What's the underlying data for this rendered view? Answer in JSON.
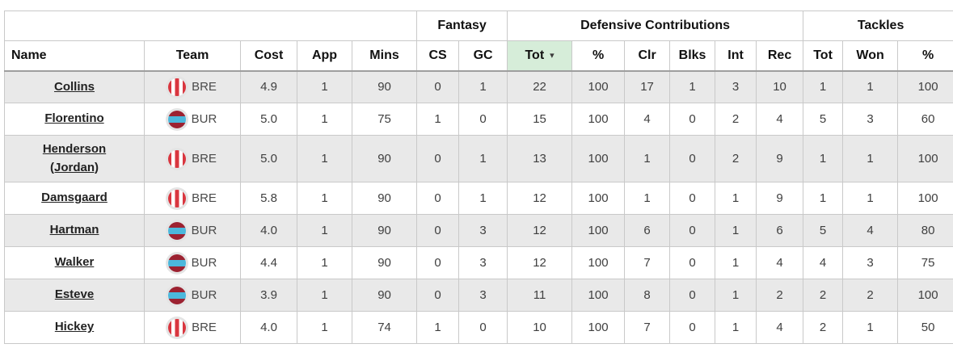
{
  "table": {
    "group_headers": [
      {
        "label": "",
        "span": 5
      },
      {
        "label": "Fantasy",
        "span": 2
      },
      {
        "label": "Defensive Contributions",
        "span": 6
      },
      {
        "label": "Tackles",
        "span": 3
      }
    ],
    "columns": [
      {
        "key": "name",
        "label": "Name"
      },
      {
        "key": "team",
        "label": "Team"
      },
      {
        "key": "cost",
        "label": "Cost"
      },
      {
        "key": "app",
        "label": "App"
      },
      {
        "key": "mins",
        "label": "Mins"
      },
      {
        "key": "cs",
        "label": "CS"
      },
      {
        "key": "gc",
        "label": "GC"
      },
      {
        "key": "dc_tot",
        "label": "Tot",
        "sorted": true,
        "sort_indicator": "▾"
      },
      {
        "key": "dc_pct",
        "label": "%"
      },
      {
        "key": "clr",
        "label": "Clr"
      },
      {
        "key": "blks",
        "label": "Blks"
      },
      {
        "key": "int",
        "label": "Int"
      },
      {
        "key": "rec",
        "label": "Rec"
      },
      {
        "key": "t_tot",
        "label": "Tot"
      },
      {
        "key": "t_won",
        "label": "Won"
      },
      {
        "key": "t_pct",
        "label": "%"
      }
    ],
    "rows": [
      {
        "name": "Collins",
        "team": "BRE",
        "cost": "4.9",
        "app": "1",
        "mins": "90",
        "cs": "0",
        "gc": "1",
        "dc_tot": "22",
        "dc_pct": "100",
        "clr": "17",
        "blks": "1",
        "int": "3",
        "rec": "10",
        "t_tot": "1",
        "t_won": "1",
        "t_pct": "100"
      },
      {
        "name": "Florentino",
        "team": "BUR",
        "cost": "5.0",
        "app": "1",
        "mins": "75",
        "cs": "1",
        "gc": "0",
        "dc_tot": "15",
        "dc_pct": "100",
        "clr": "4",
        "blks": "0",
        "int": "2",
        "rec": "4",
        "t_tot": "5",
        "t_won": "3",
        "t_pct": "60"
      },
      {
        "name": "Henderson (Jordan)",
        "team": "BRE",
        "cost": "5.0",
        "app": "1",
        "mins": "90",
        "cs": "0",
        "gc": "1",
        "dc_tot": "13",
        "dc_pct": "100",
        "clr": "1",
        "blks": "0",
        "int": "2",
        "rec": "9",
        "t_tot": "1",
        "t_won": "1",
        "t_pct": "100"
      },
      {
        "name": "Damsgaard",
        "team": "BRE",
        "cost": "5.8",
        "app": "1",
        "mins": "90",
        "cs": "0",
        "gc": "1",
        "dc_tot": "12",
        "dc_pct": "100",
        "clr": "1",
        "blks": "0",
        "int": "1",
        "rec": "9",
        "t_tot": "1",
        "t_won": "1",
        "t_pct": "100"
      },
      {
        "name": "Hartman",
        "team": "BUR",
        "cost": "4.0",
        "app": "1",
        "mins": "90",
        "cs": "0",
        "gc": "3",
        "dc_tot": "12",
        "dc_pct": "100",
        "clr": "6",
        "blks": "0",
        "int": "1",
        "rec": "6",
        "t_tot": "5",
        "t_won": "4",
        "t_pct": "80"
      },
      {
        "name": "Walker",
        "team": "BUR",
        "cost": "4.4",
        "app": "1",
        "mins": "90",
        "cs": "0",
        "gc": "3",
        "dc_tot": "12",
        "dc_pct": "100",
        "clr": "7",
        "blks": "0",
        "int": "1",
        "rec": "4",
        "t_tot": "4",
        "t_won": "3",
        "t_pct": "75"
      },
      {
        "name": "Esteve",
        "team": "BUR",
        "cost": "3.9",
        "app": "1",
        "mins": "90",
        "cs": "0",
        "gc": "3",
        "dc_tot": "11",
        "dc_pct": "100",
        "clr": "8",
        "blks": "0",
        "int": "1",
        "rec": "2",
        "t_tot": "2",
        "t_won": "2",
        "t_pct": "100"
      },
      {
        "name": "Hickey",
        "team": "BRE",
        "cost": "4.0",
        "app": "1",
        "mins": "74",
        "cs": "1",
        "gc": "0",
        "dc_tot": "10",
        "dc_pct": "100",
        "clr": "7",
        "blks": "0",
        "int": "1",
        "rec": "4",
        "t_tot": "2",
        "t_won": "1",
        "t_pct": "50"
      }
    ],
    "teams": {
      "BRE": {
        "abbr": "BRE",
        "style": "stripes-vertical",
        "colors": [
          "#d9363f",
          "#ffffff"
        ]
      },
      "BUR": {
        "abbr": "BUR",
        "style": "band-horizontal",
        "colors": [
          "#9c2231",
          "#4cb8dc"
        ]
      }
    },
    "colors": {
      "sorted_header_bg": "#d6edd9",
      "row_stripe": "#e9e9e9",
      "cell_border": "#c9c9c9",
      "header_border": "#9e9e9e",
      "data_text": "#3f3f3f",
      "player_link": "#222222"
    }
  }
}
